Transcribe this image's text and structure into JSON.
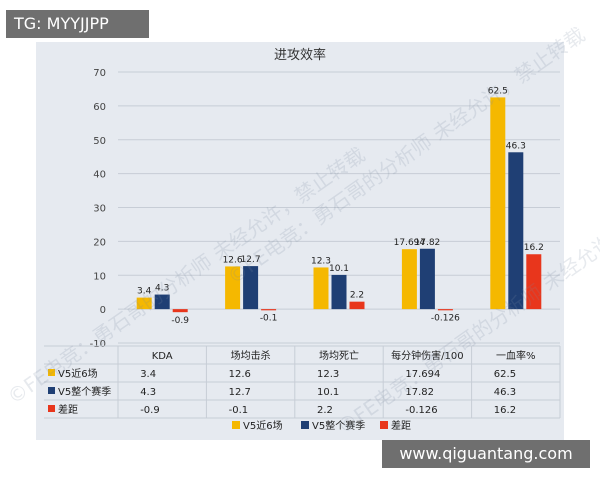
{
  "overlay": {
    "tag": "TG: MYYJJPP",
    "site": "www.qiguantang.com"
  },
  "watermark": "©FE电竞：勇石哥的分析师 未经允许，禁止转载",
  "colors": {
    "panel": "#e6eaf0",
    "grid": "#c7cdd6",
    "series": [
      "#f5b800",
      "#1f3f74",
      "#e8361c"
    ]
  },
  "chart_data": {
    "type": "bar",
    "title": "进攻效率",
    "categories": [
      "KDA",
      "场均击杀",
      "场均死亡",
      "每分钟伤害/100",
      "一血率%"
    ],
    "ylim": [
      -10,
      70
    ],
    "yticks": [
      -10,
      0,
      10,
      20,
      30,
      40,
      50,
      60,
      70
    ],
    "grid": true,
    "legend": "bottom",
    "series": [
      {
        "name": "V5近6场",
        "values": [
          3.4,
          12.6,
          12.3,
          17.694,
          62.5
        ],
        "labels": [
          "3.4",
          "12.6",
          "12.3",
          "17.694",
          "62.5"
        ]
      },
      {
        "name": "V5整个赛季",
        "values": [
          4.3,
          12.7,
          10.1,
          17.82,
          46.3
        ],
        "labels": [
          "4.3",
          "12.7",
          "10.1",
          "17.82",
          "46.3"
        ]
      },
      {
        "name": "差距",
        "values": [
          -0.9,
          -0.1,
          2.2,
          -0.126,
          16.2
        ],
        "labels": [
          "-0.9",
          "-0.1",
          "2.2",
          "-0.126",
          "16.2"
        ]
      }
    ]
  }
}
